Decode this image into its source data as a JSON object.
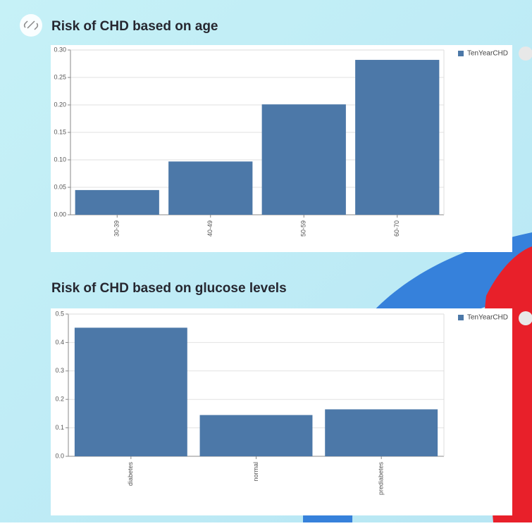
{
  "chart_data": [
    {
      "type": "bar",
      "title": "Risk of CHD based on age",
      "categories": [
        "30-39",
        "40-49",
        "50-59",
        "60-70"
      ],
      "series": [
        {
          "name": "TenYearCHD",
          "color": "#4c78a8",
          "values": [
            0.045,
            0.097,
            0.201,
            0.282
          ]
        }
      ],
      "ylim": [
        0,
        0.3
      ],
      "yticks": [
        {
          "value": 0,
          "label": "0.00"
        },
        0.05,
        {
          "value": 0.1,
          "label": "0.10"
        },
        0.15,
        {
          "value": 0.2,
          "label": "0.20"
        },
        0.25,
        {
          "value": 0.3,
          "label": "0.30"
        }
      ],
      "grid": true
    },
    {
      "type": "bar",
      "title": "Risk of CHD based on glucose levels",
      "categories": [
        "diabetes",
        "normal",
        "prediabetes"
      ],
      "series": [
        {
          "name": "TenYearCHD",
          "color": "#4c78a8",
          "values": [
            0.452,
            0.145,
            0.165
          ]
        }
      ],
      "ylim": [
        0,
        0.5
      ],
      "yticks": [
        {
          "value": 0,
          "label": "0.0"
        },
        0.1,
        0.2,
        0.3,
        0.4,
        0.5
      ],
      "grid": true
    }
  ]
}
